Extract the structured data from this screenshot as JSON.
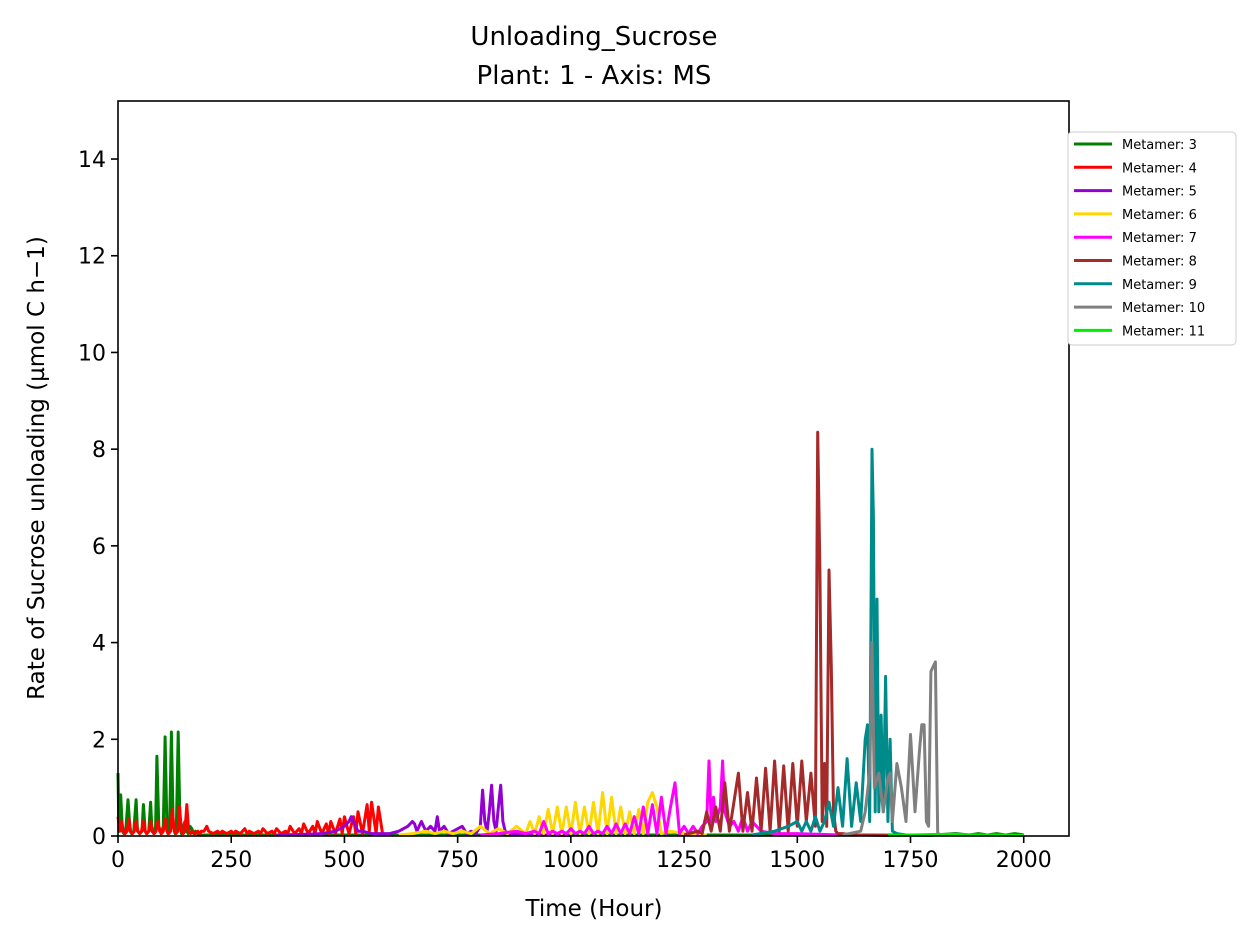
{
  "chart_data": {
    "type": "line",
    "title": "Unloading_Sucrose",
    "subtitle": "Plant: 1 - Axis: MS",
    "xlabel": "Time (Hour)",
    "ylabel": "Rate of Sucrose unloading (µmol C h−1)",
    "xlim": [
      0,
      2100
    ],
    "ylim": [
      0,
      15.2
    ],
    "xticks": [
      0,
      250,
      500,
      750,
      1000,
      1250,
      1500,
      1750,
      2000
    ],
    "yticks": [
      0,
      2,
      4,
      6,
      8,
      10,
      12,
      14
    ],
    "grid": false,
    "legend_position": "upper-right-outside",
    "series": [
      {
        "name": "Metamer: 3",
        "color": "#008000",
        "x": [
          0,
          2,
          6,
          10,
          13,
          17,
          22,
          27,
          30,
          35,
          40,
          43,
          48,
          53,
          56,
          60,
          63,
          68,
          72,
          75,
          79,
          83,
          86,
          90,
          95,
          100,
          104,
          108,
          110,
          114,
          118,
          122,
          126,
          129,
          133,
          137,
          140,
          144,
          148,
          152,
          155,
          159,
          163,
          167,
          171,
          175,
          178,
          182,
          186,
          190,
          194,
          197,
          201,
          205,
          210,
          220,
          240,
          400,
          1000,
          1600,
          1800,
          1850,
          1880,
          1900,
          1920,
          1940,
          1960,
          1980,
          2000
        ],
        "y": [
          1.3,
          0.1,
          0.85,
          0.1,
          0.05,
          0.1,
          0.75,
          0.1,
          0.05,
          0.1,
          0.75,
          0.1,
          0.05,
          0.1,
          0.65,
          0.1,
          0.05,
          0.1,
          0.7,
          0.1,
          0.05,
          0.2,
          1.65,
          0.2,
          0.05,
          0.2,
          2.05,
          0.2,
          0.05,
          0.2,
          2.15,
          0.2,
          0.05,
          0.2,
          2.15,
          0.2,
          0.05,
          0.2,
          0.3,
          0.1,
          0.05,
          0.2,
          0.15,
          0.05,
          0.1,
          0.05,
          0.03,
          0.02,
          0.02,
          0.02,
          0.02,
          0.02,
          0.02,
          0.02,
          0.02,
          0.02,
          0.02,
          0.02,
          0.02,
          0.02,
          0.02,
          0.05,
          0.02,
          0.05,
          0.02,
          0.05,
          0.02,
          0.05,
          0.02
        ]
      },
      {
        "name": "Metamer: 4",
        "color": "#ff0000",
        "x": [
          0,
          4,
          8,
          12,
          16,
          20,
          24,
          28,
          32,
          36,
          40,
          44,
          48,
          52,
          56,
          60,
          64,
          68,
          72,
          76,
          80,
          84,
          88,
          92,
          96,
          100,
          104,
          108,
          112,
          116,
          120,
          124,
          128,
          132,
          136,
          140,
          144,
          148,
          152,
          156,
          160,
          164,
          170,
          176,
          180,
          184,
          190,
          196,
          200,
          210,
          220,
          225,
          230,
          240,
          250,
          255,
          260,
          270,
          280,
          285,
          290,
          300,
          310,
          315,
          320,
          330,
          340,
          345,
          350,
          360,
          370,
          375,
          380,
          390,
          400,
          405,
          410,
          420,
          430,
          435,
          440,
          450,
          460,
          465,
          470,
          480,
          490,
          495,
          500,
          510,
          520,
          525,
          530,
          540,
          550,
          555,
          560,
          570,
          575,
          580,
          585
        ],
        "y": [
          0.4,
          0.1,
          0.3,
          0.1,
          0.05,
          0.1,
          0.35,
          0.1,
          0.05,
          0.1,
          0.3,
          0.1,
          0.05,
          0.1,
          0.3,
          0.1,
          0.05,
          0.1,
          0.3,
          0.1,
          0.05,
          0.1,
          0.3,
          0.1,
          0.05,
          0.1,
          0.35,
          0.1,
          0.05,
          0.1,
          0.55,
          0.1,
          0.05,
          0.1,
          0.6,
          0.1,
          0.05,
          0.1,
          0.65,
          0.1,
          0.05,
          0.1,
          0.05,
          0.1,
          0.05,
          0.1,
          0.1,
          0.2,
          0.1,
          0.05,
          0.1,
          0.05,
          0.1,
          0.05,
          0.1,
          0.05,
          0.1,
          0.05,
          0.15,
          0.05,
          0.1,
          0.05,
          0.1,
          0.05,
          0.15,
          0.05,
          0.1,
          0.05,
          0.15,
          0.05,
          0.1,
          0.05,
          0.2,
          0.05,
          0.15,
          0.05,
          0.25,
          0.05,
          0.2,
          0.05,
          0.3,
          0.05,
          0.25,
          0.05,
          0.3,
          0.05,
          0.35,
          0.05,
          0.4,
          0.05,
          0.4,
          0.05,
          0.5,
          0.05,
          0.65,
          0.1,
          0.7,
          0.05,
          0.6,
          0.3,
          0.0
        ]
      },
      {
        "name": "Metamer: 5",
        "color": "#9400d3",
        "x": [
          350,
          400,
          450,
          480,
          500,
          510,
          515,
          520,
          530,
          540,
          560,
          580,
          600,
          620,
          640,
          650,
          655,
          660,
          670,
          680,
          690,
          700,
          705,
          710,
          720,
          730,
          740,
          760,
          770,
          780,
          790,
          800,
          805,
          810,
          815,
          820,
          825,
          830,
          835,
          840,
          845,
          850,
          855,
          860,
          880,
          900,
          950,
          1000
        ],
        "y": [
          0.02,
          0.03,
          0.05,
          0.1,
          0.2,
          0.3,
          0.4,
          0.3,
          0.1,
          0.1,
          0.05,
          0.05,
          0.05,
          0.1,
          0.2,
          0.3,
          0.25,
          0.1,
          0.3,
          0.1,
          0.2,
          0.1,
          0.4,
          0.1,
          0.2,
          0.05,
          0.1,
          0.2,
          0.05,
          0.1,
          0.05,
          0.2,
          0.95,
          0.3,
          0.1,
          0.5,
          1.05,
          0.3,
          0.1,
          0.6,
          1.05,
          0.3,
          0.1,
          0.05,
          0.05,
          0.02,
          0.02,
          0.01
        ]
      },
      {
        "name": "Metamer: 6",
        "color": "#ffd700",
        "x": [
          620,
          650,
          680,
          700,
          720,
          740,
          760,
          780,
          800,
          820,
          840,
          860,
          880,
          900,
          910,
          920,
          930,
          940,
          950,
          960,
          970,
          980,
          990,
          1000,
          1010,
          1020,
          1030,
          1040,
          1050,
          1060,
          1070,
          1080,
          1090,
          1100,
          1110,
          1120,
          1130,
          1140,
          1150,
          1160,
          1170,
          1180,
          1190,
          1200,
          1220,
          1250,
          1300
        ],
        "y": [
          0.02,
          0.05,
          0.1,
          0.05,
          0.1,
          0.05,
          0.1,
          0.05,
          0.2,
          0.05,
          0.15,
          0.05,
          0.2,
          0.05,
          0.3,
          0.05,
          0.4,
          0.05,
          0.55,
          0.05,
          0.6,
          0.05,
          0.6,
          0.05,
          0.7,
          0.05,
          0.6,
          0.05,
          0.7,
          0.05,
          0.9,
          0.05,
          0.8,
          0.05,
          0.6,
          0.05,
          0.5,
          0.05,
          0.55,
          0.05,
          0.7,
          0.9,
          0.6,
          0.05,
          0.1,
          0.05,
          0.02
        ]
      },
      {
        "name": "Metamer: 7",
        "color": "#ff00ff",
        "x": [
          800,
          840,
          880,
          900,
          920,
          930,
          940,
          950,
          960,
          970,
          980,
          990,
          1000,
          1010,
          1020,
          1030,
          1040,
          1050,
          1060,
          1070,
          1080,
          1090,
          1100,
          1110,
          1120,
          1130,
          1140,
          1150,
          1160,
          1170,
          1180,
          1190,
          1200,
          1210,
          1220,
          1230,
          1240,
          1250,
          1260,
          1270,
          1280,
          1290,
          1300,
          1305,
          1310,
          1315,
          1320,
          1330,
          1335,
          1340,
          1350,
          1360,
          1370,
          1380,
          1390,
          1400,
          1420,
          1450,
          1500,
          1600,
          1700
        ],
        "y": [
          0.02,
          0.05,
          0.1,
          0.05,
          0.1,
          0.05,
          0.3,
          0.05,
          0.1,
          0.05,
          0.1,
          0.05,
          0.15,
          0.05,
          0.1,
          0.05,
          0.2,
          0.05,
          0.1,
          0.05,
          0.2,
          0.05,
          0.25,
          0.05,
          0.25,
          0.05,
          0.4,
          0.05,
          0.6,
          0.05,
          0.65,
          0.05,
          0.8,
          0.05,
          0.6,
          1.1,
          0.05,
          0.2,
          0.05,
          0.2,
          0.05,
          0.2,
          0.3,
          1.55,
          0.3,
          0.8,
          0.3,
          0.6,
          1.55,
          0.5,
          0.2,
          0.3,
          0.1,
          0.4,
          0.1,
          0.3,
          0.1,
          0.05,
          0.05,
          0.02,
          0.02
        ]
      },
      {
        "name": "Metamer: 8",
        "color": "#a52a2a",
        "x": [
          1250,
          1280,
          1290,
          1300,
          1310,
          1320,
          1330,
          1340,
          1350,
          1360,
          1370,
          1380,
          1390,
          1400,
          1410,
          1420,
          1430,
          1440,
          1450,
          1460,
          1470,
          1480,
          1490,
          1500,
          1510,
          1520,
          1530,
          1540,
          1545,
          1550,
          1555,
          1560,
          1565,
          1570,
          1575,
          1580,
          1585,
          1590,
          1600,
          1620,
          1650,
          1700
        ],
        "y": [
          0.02,
          0.1,
          0.05,
          0.5,
          0.1,
          0.6,
          0.1,
          1.1,
          0.1,
          0.7,
          1.3,
          0.1,
          0.9,
          0.1,
          1.2,
          0.1,
          1.4,
          0.1,
          1.55,
          0.1,
          1.45,
          0.1,
          1.5,
          0.2,
          1.55,
          0.3,
          1.3,
          0.2,
          8.35,
          5.5,
          0.3,
          1.5,
          0.2,
          5.5,
          3.5,
          0.5,
          0.1,
          0.05,
          0.05,
          0.02,
          0.02,
          0.01
        ]
      },
      {
        "name": "Metamer: 9",
        "color": "#008b8b",
        "x": [
          1400,
          1450,
          1480,
          1500,
          1510,
          1520,
          1530,
          1540,
          1550,
          1560,
          1570,
          1580,
          1590,
          1600,
          1610,
          1620,
          1630,
          1640,
          1650,
          1655,
          1660,
          1665,
          1668,
          1672,
          1676,
          1680,
          1685,
          1690,
          1695,
          1700,
          1705,
          1710,
          1720,
          1740,
          1800
        ],
        "y": [
          0.02,
          0.1,
          0.2,
          0.3,
          0.1,
          0.3,
          0.1,
          0.4,
          0.1,
          0.3,
          0.7,
          0.2,
          1.0,
          0.2,
          1.6,
          0.2,
          1.1,
          0.3,
          2.0,
          2.3,
          0.3,
          8.0,
          6.6,
          0.5,
          4.9,
          0.5,
          2.5,
          0.5,
          3.3,
          0.3,
          2.0,
          0.1,
          0.05,
          0.02,
          0.01
        ]
      },
      {
        "name": "Metamer: 10",
        "color": "#808080",
        "x": [
          1600,
          1640,
          1650,
          1660,
          1665,
          1670,
          1680,
          1690,
          1700,
          1705,
          1710,
          1720,
          1730,
          1740,
          1750,
          1760,
          1770,
          1775,
          1780,
          1785,
          1790,
          1795,
          1800,
          1805,
          1810,
          1820,
          1840,
          1860,
          1900,
          1950,
          2000
        ],
        "y": [
          0.02,
          0.1,
          0.5,
          1.3,
          4.0,
          1.0,
          1.3,
          0.5,
          1.2,
          1.3,
          0.3,
          1.5,
          1.0,
          0.3,
          2.1,
          0.5,
          1.8,
          2.3,
          2.3,
          0.3,
          0.2,
          3.4,
          3.5,
          3.6,
          0.05,
          0.02,
          0.02,
          0.02,
          0.02,
          0.02,
          0.01
        ]
      },
      {
        "name": "Metamer: 11",
        "color": "#00ee00",
        "x": [
          1700,
          1750,
          1800,
          1850,
          1900,
          1950,
          2000
        ],
        "y": [
          0.01,
          0.02,
          0.03,
          0.03,
          0.02,
          0.02,
          0.01
        ]
      }
    ]
  }
}
